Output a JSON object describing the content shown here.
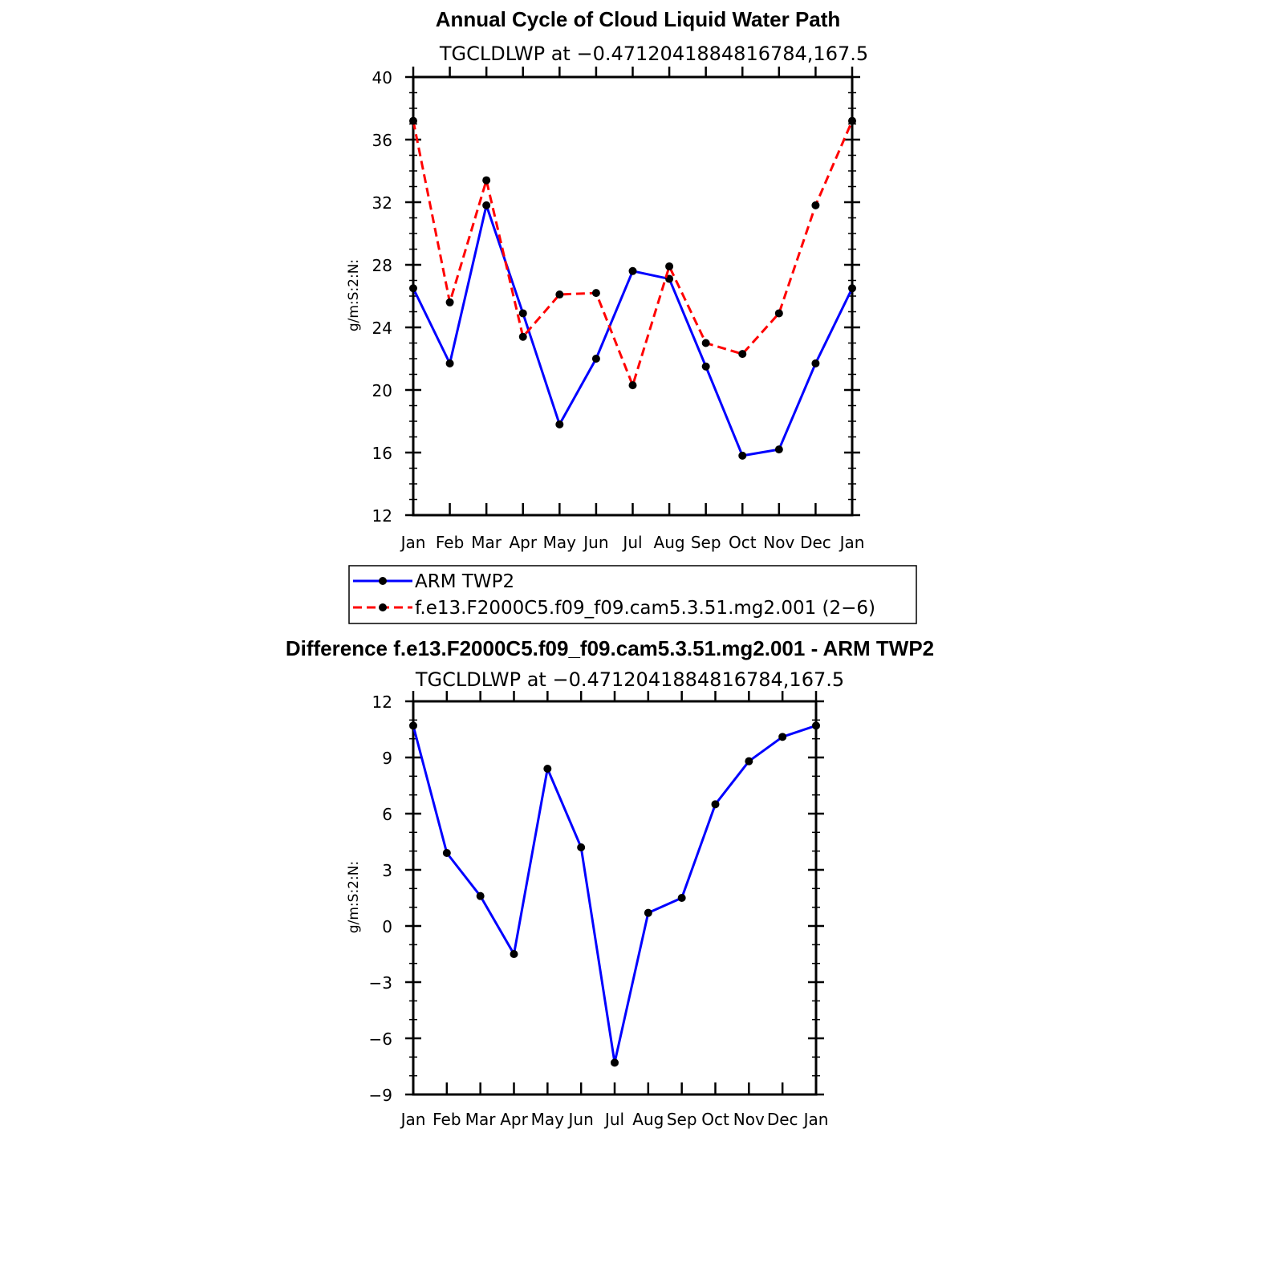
{
  "chart_data": [
    {
      "type": "line",
      "title": "Annual Cycle of Cloud Liquid Water Path",
      "subtitle": "TGCLDLWP at −0.4712041884816784,167.5",
      "ylabel": "g/m:S:2:N:",
      "ylim": [
        12,
        40
      ],
      "yticks": [
        "40",
        "36",
        "32",
        "28",
        "24",
        "20",
        "16",
        "12"
      ],
      "categories": [
        "Jan",
        "Feb",
        "Mar",
        "Apr",
        "May",
        "Jun",
        "Jul",
        "Aug",
        "Sep",
        "Oct",
        "Nov",
        "Dec",
        "Jan"
      ],
      "series": [
        {
          "name": "ARM TWP2",
          "color": "#0000ff",
          "dash": "solid",
          "values": [
            26.5,
            21.7,
            31.8,
            24.9,
            17.8,
            22.0,
            27.6,
            27.1,
            21.5,
            15.8,
            16.2,
            21.7,
            26.5
          ]
        },
        {
          "name": "f.e13.F2000C5.f09_f09.cam5.3.51.mg2.001 (2−6)",
          "color": "#ff0000",
          "dash": "dashed",
          "values": [
            37.2,
            25.6,
            33.4,
            23.4,
            26.1,
            26.2,
            20.3,
            27.9,
            23.0,
            22.3,
            24.9,
            31.8,
            37.2
          ]
        }
      ],
      "legend": {
        "placement": "below",
        "entries": [
          "ARM TWP2",
          "f.e13.F2000C5.f09_f09.cam5.3.51.mg2.001 (2−6)"
        ]
      }
    },
    {
      "type": "line",
      "title": "Difference f.e13.F2000C5.f09_f09.cam5.3.51.mg2.001 - ARM TWP2",
      "subtitle": "TGCLDLWP at −0.4712041884816784,167.5",
      "ylabel": "g/m:S:2:N:",
      "ylim": [
        -9,
        12
      ],
      "yticks": [
        "12",
        "9",
        "6",
        "3",
        "0",
        "−3",
        "−6",
        "−9"
      ],
      "categories": [
        "Jan",
        "Feb",
        "Mar",
        "Apr",
        "May",
        "Jun",
        "Jul",
        "Aug",
        "Sep",
        "Oct",
        "Nov",
        "Dec",
        "Jan"
      ],
      "series": [
        {
          "name": "Difference",
          "color": "#0000ff",
          "dash": "solid",
          "values": [
            10.7,
            3.9,
            1.6,
            -1.5,
            8.4,
            4.2,
            -7.3,
            0.7,
            1.5,
            6.5,
            8.8,
            10.1,
            10.7
          ]
        }
      ]
    }
  ]
}
